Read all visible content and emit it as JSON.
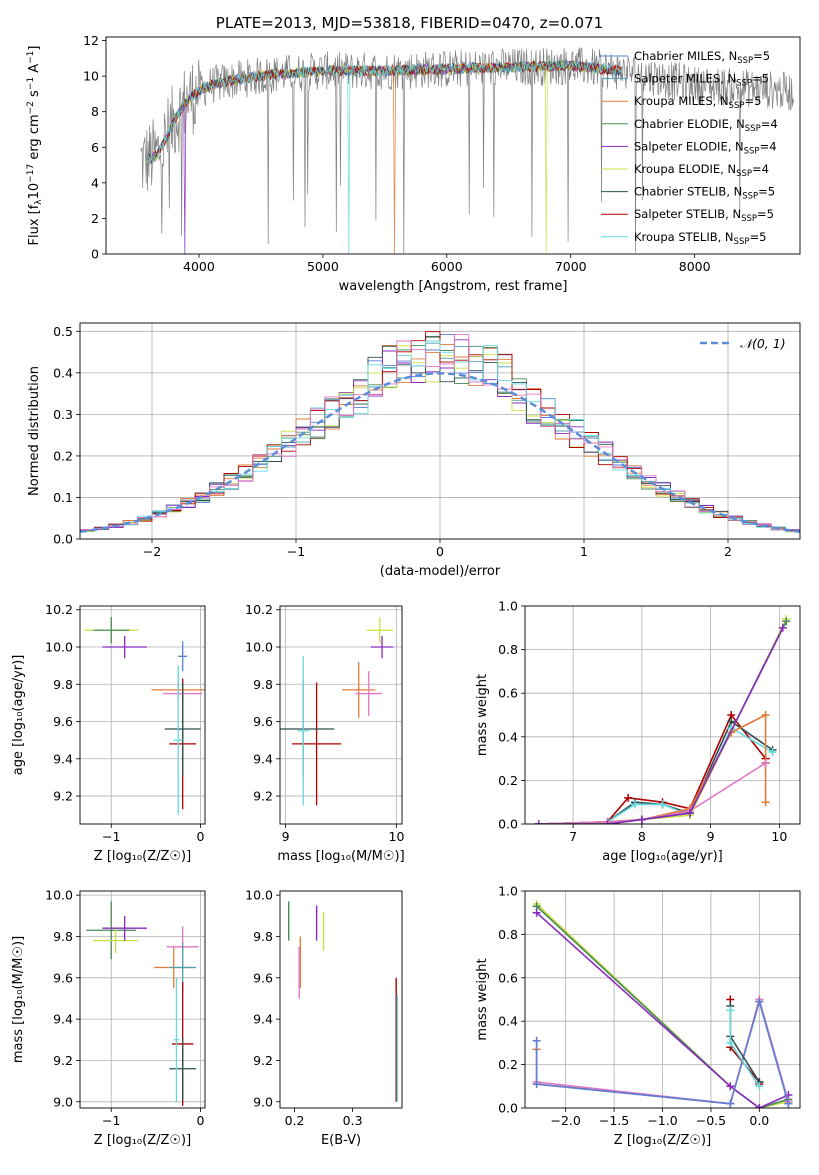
{
  "chart_data": [
    {
      "type": "line",
      "title": "PLATE=2013, MJD=53818, FIBERID=0470, z=0.071",
      "xlabel": "wavelength [Angstrom, rest frame]",
      "ylabel": "Flux [f_λ 10^−17 erg cm^−2 s^−1 A^−1]",
      "xlim": [
        3250,
        8850
      ],
      "ylim": [
        0,
        12.2
      ],
      "xticks": [
        "4000",
        "5000",
        "6000",
        "7000",
        "8000"
      ],
      "yticks": [
        "0",
        "2",
        "4",
        "6",
        "8",
        "10",
        "12"
      ],
      "grid": false,
      "legend_position": "upper-right",
      "series": [
        {
          "name": "Chabrier MILES, N_SSP=5",
          "color": "#5a7fd6"
        },
        {
          "name": "Salpeter MILES, N_SSP=5",
          "color": "#4f9fb0"
        },
        {
          "name": "Kroupa MILES, N_SSP=5",
          "color": "#e07b39"
        },
        {
          "name": "Chabrier ELODIE, N_SSP=4",
          "color": "#4a8a5a"
        },
        {
          "name": "Salpeter ELODIE, N_SSP=4",
          "color": "#8a2bc0"
        },
        {
          "name": "Kroupa ELODIE, N_SSP=4",
          "color": "#c8e040"
        },
        {
          "name": "Chabrier STELIB, N_SSP=5",
          "color": "#2f4f4f"
        },
        {
          "name": "Salpeter STELIB, N_SSP=5",
          "color": "#b00000"
        },
        {
          "name": "Kroupa STELIB, N_SSP=5",
          "color": "#66d9e0"
        }
      ],
      "model_curve": {
        "x": [
          3550,
          3650,
          3700,
          3800,
          3900,
          4000,
          4100,
          4300,
          4600,
          5000,
          5500,
          6000,
          6500,
          7000,
          7500,
          8000,
          8500,
          8800
        ],
        "y": [
          5.2,
          5.5,
          6.0,
          7.5,
          8.6,
          9.2,
          9.5,
          9.8,
          10.1,
          10.3,
          10.3,
          10.4,
          10.5,
          10.6,
          10.2,
          9.5,
          9.3,
          9.1
        ]
      }
    },
    {
      "type": "line",
      "xlabel": "(data-model)/error",
      "ylabel": "Normed distribution",
      "xlim": [
        -2.5,
        2.5
      ],
      "ylim": [
        0,
        0.52
      ],
      "xticks": [
        "−2",
        "−1",
        "0",
        "1",
        "2"
      ],
      "yticks": [
        "0.0",
        "0.1",
        "0.2",
        "0.3",
        "0.4",
        "0.5"
      ],
      "grid": true,
      "legend": {
        "label": "𝒩(0, 1)",
        "position": "upper-right",
        "color": "#5b8dd9"
      },
      "gaussian": {
        "mean": 0,
        "sigma": 1
      }
    },
    {
      "type": "scatter",
      "xlabel": "Z [log₁₀(Z/Z☉)]",
      "ylabel": "age  [log₁₀(age/yr)]",
      "xlim": [
        -1.35,
        0.05
      ],
      "ylim": [
        9.05,
        10.22
      ],
      "xticks": [
        "−1",
        "0"
      ],
      "yticks": [
        "9.2",
        "9.4",
        "9.6",
        "9.8",
        "10.0",
        "10.2"
      ],
      "grid": true,
      "crosses": [
        {
          "x": -1.0,
          "y": 10.09,
          "xerr": 0.3,
          "yerr": 0.07,
          "color": "#c8e040"
        },
        {
          "x": -1.0,
          "y": 10.09,
          "xerr": 0.2,
          "yerr": 0.07,
          "color": "#4a8a5a"
        },
        {
          "x": -0.85,
          "y": 10.0,
          "xerr": 0.25,
          "yerr": 0.06,
          "color": "#8a2bc0"
        },
        {
          "x": -0.25,
          "y": 9.77,
          "xerr": 0.3,
          "yerr": 0.05,
          "color": "#e07b39"
        },
        {
          "x": -0.2,
          "y": 9.75,
          "xerr": 0.22,
          "yerr": 0.05,
          "color": "#e377c2"
        },
        {
          "x": -0.2,
          "y": 9.95,
          "xerr": 0.05,
          "yerr": 0.08,
          "color": "#5a7fd6"
        },
        {
          "x": -0.2,
          "y": 9.48,
          "xerr": 0.15,
          "yerr": 0.35,
          "color": "#b00000"
        },
        {
          "x": -0.2,
          "y": 9.56,
          "xerr": 0.2,
          "yerr": 0.25,
          "color": "#2f4f4f"
        },
        {
          "x": -0.25,
          "y": 9.5,
          "xerr": 0.05,
          "yerr": 0.4,
          "color": "#66d9e0"
        }
      ]
    },
    {
      "type": "scatter",
      "xlabel": "mass [log₁₀(M/M☉)]",
      "ylabel": "",
      "xlim": [
        8.95,
        10.05
      ],
      "ylim": [
        9.05,
        10.22
      ],
      "xticks": [
        "9",
        "10"
      ],
      "yticks": [
        "9.2",
        "9.4",
        "9.6",
        "9.8",
        "10.0",
        "10.2"
      ],
      "grid": true,
      "crosses": [
        {
          "x": 9.85,
          "y": 10.09,
          "xerr": 0.12,
          "yerr": 0.07,
          "color": "#c8e040"
        },
        {
          "x": 9.87,
          "y": 10.0,
          "xerr": 0.1,
          "yerr": 0.06,
          "color": "#8a2bc0"
        },
        {
          "x": 9.66,
          "y": 9.77,
          "xerr": 0.15,
          "yerr": 0.15,
          "color": "#e07b39"
        },
        {
          "x": 9.75,
          "y": 9.75,
          "xerr": 0.12,
          "yerr": 0.12,
          "color": "#e377c2"
        },
        {
          "x": 9.28,
          "y": 9.48,
          "xerr": 0.22,
          "yerr": 0.33,
          "color": "#b00000"
        },
        {
          "x": 9.16,
          "y": 9.56,
          "xerr": 0.28,
          "yerr": 0.26,
          "color": "#2f4f4f"
        },
        {
          "x": 9.16,
          "y": 9.55,
          "xerr": 0.05,
          "yerr": 0.4,
          "color": "#66d9e0"
        }
      ]
    },
    {
      "type": "line",
      "xlabel": "age  [log₁₀(age/yr)]",
      "ylabel": "mass weight",
      "xlim": [
        6.3,
        10.3
      ],
      "ylim": [
        0,
        1.0
      ],
      "xticks": [
        "7",
        "8",
        "9",
        "10"
      ],
      "yticks": [
        "0.0",
        "0.2",
        "0.4",
        "0.6",
        "0.8",
        "1.0"
      ],
      "grid": true,
      "series": [
        {
          "color": "#b00000",
          "x": [
            6.5,
            7.5,
            7.8,
            8.3,
            8.7,
            9.3,
            9.8,
            9.8
          ],
          "y": [
            0.0,
            0.01,
            0.12,
            0.1,
            0.07,
            0.5,
            0.3,
            0.28
          ]
        },
        {
          "color": "#2f4f4f",
          "x": [
            6.5,
            7.5,
            7.9,
            8.3,
            8.7,
            9.3,
            9.9
          ],
          "y": [
            0.0,
            0.01,
            0.1,
            0.09,
            0.05,
            0.47,
            0.34
          ]
        },
        {
          "color": "#66d9e0",
          "x": [
            6.5,
            7.5,
            7.9,
            8.3,
            8.7,
            9.3,
            9.9
          ],
          "y": [
            0.0,
            0.01,
            0.09,
            0.09,
            0.04,
            0.44,
            0.33
          ]
        },
        {
          "color": "#e07b39",
          "x": [
            6.5,
            7.5,
            8.0,
            8.7,
            9.3,
            9.8,
            9.8
          ],
          "y": [
            0.0,
            0.01,
            0.02,
            0.07,
            0.42,
            0.5,
            0.1
          ]
        },
        {
          "color": "#e377c2",
          "x": [
            6.5,
            7.5,
            8.0,
            8.7,
            9.8
          ],
          "y": [
            0.0,
            0.01,
            0.02,
            0.06,
            0.28
          ]
        },
        {
          "color": "#c8e040",
          "x": [
            6.5,
            7.5,
            8.0,
            8.7,
            10.1
          ],
          "y": [
            0.0,
            0.0,
            0.02,
            0.04,
            0.94
          ]
        },
        {
          "color": "#4a8a5a",
          "x": [
            6.5,
            7.5,
            8.0,
            8.7,
            10.1
          ],
          "y": [
            0.0,
            0.0,
            0.02,
            0.05,
            0.93
          ]
        },
        {
          "color": "#8a2bc0",
          "x": [
            6.5,
            7.5,
            8.0,
            8.7,
            10.05
          ],
          "y": [
            0.0,
            0.0,
            0.02,
            0.05,
            0.9
          ]
        }
      ]
    },
    {
      "type": "scatter",
      "xlabel": "Z [log₁₀(Z/Z☉)]",
      "ylabel": "mass [log₁₀(M/M☉)]",
      "xlim": [
        -1.35,
        0.05
      ],
      "ylim": [
        8.97,
        10.02
      ],
      "xticks": [
        "−1",
        "0"
      ],
      "yticks": [
        "9.0",
        "9.2",
        "9.4",
        "9.6",
        "9.8",
        "10.0"
      ],
      "grid": true,
      "crosses": [
        {
          "x": -1.0,
          "y": 9.83,
          "xerr": 0.28,
          "yerr": 0.14,
          "color": "#4a8a5a"
        },
        {
          "x": -0.95,
          "y": 9.78,
          "xerr": 0.25,
          "yerr": 0.06,
          "color": "#c8e040"
        },
        {
          "x": -0.85,
          "y": 9.84,
          "xerr": 0.25,
          "yerr": 0.06,
          "color": "#8a2bc0"
        },
        {
          "x": -0.3,
          "y": 9.65,
          "xerr": 0.22,
          "yerr": 0.1,
          "color": "#e07b39"
        },
        {
          "x": -0.2,
          "y": 9.75,
          "xerr": 0.18,
          "yerr": 0.1,
          "color": "#e377c2"
        },
        {
          "x": -0.2,
          "y": 9.65,
          "xerr": 0.15,
          "yerr": 0.12,
          "color": "#4f9fb0"
        },
        {
          "x": -0.2,
          "y": 9.28,
          "xerr": 0.12,
          "yerr": 0.3,
          "color": "#b00000"
        },
        {
          "x": -0.2,
          "y": 9.16,
          "xerr": 0.15,
          "yerr": 0.15,
          "color": "#2f4f4f"
        },
        {
          "x": -0.27,
          "y": 9.3,
          "xerr": 0.03,
          "yerr": 0.3,
          "color": "#66d9e0"
        }
      ]
    },
    {
      "type": "scatter",
      "xlabel": "E(B-V)",
      "ylabel": "",
      "xlim": [
        0.175,
        0.385
      ],
      "ylim": [
        8.97,
        10.02
      ],
      "xticks": [
        "0.2",
        "0.3"
      ],
      "yticks": [
        "9.0",
        "9.2",
        "9.4",
        "9.6",
        "9.8",
        "10.0"
      ],
      "grid": false,
      "bars": [
        {
          "x": 0.19,
          "y0": 9.78,
          "y1": 9.97,
          "color": "#4a8a5a"
        },
        {
          "x": 0.21,
          "y0": 9.55,
          "y1": 9.8,
          "color": "#e07b39"
        },
        {
          "x": 0.208,
          "y0": 9.5,
          "y1": 9.75,
          "color": "#e377c2"
        },
        {
          "x": 0.238,
          "y0": 9.78,
          "y1": 9.95,
          "color": "#8a2bc0"
        },
        {
          "x": 0.25,
          "y0": 9.73,
          "y1": 9.92,
          "color": "#c8e040"
        },
        {
          "x": 0.375,
          "y0": 9.0,
          "y1": 9.6,
          "color": "#b00000"
        },
        {
          "x": 0.377,
          "y0": 9.0,
          "y1": 9.52,
          "color": "#66d9e0"
        }
      ]
    },
    {
      "type": "line",
      "xlabel": "Z [log₁₀(Z/Z☉)]",
      "ylabel": "mass weight",
      "xlim": [
        -2.42,
        0.42
      ],
      "ylim": [
        0,
        1.0
      ],
      "xticks": [
        "−2.0",
        "−1.5",
        "−1.0",
        "−0.5",
        "0.0"
      ],
      "yticks": [
        "0.0",
        "0.2",
        "0.4",
        "0.6",
        "0.8",
        "1.0"
      ],
      "grid": true,
      "series": [
        {
          "color": "#c8e040",
          "x": [
            -2.3,
            -0.3,
            0.0,
            0.3
          ],
          "y": [
            0.94,
            0.1,
            0.0,
            0.03
          ]
        },
        {
          "color": "#4a8a5a",
          "x": [
            -2.3,
            -0.3,
            0.0,
            0.3
          ],
          "y": [
            0.93,
            0.1,
            0.0,
            0.04
          ]
        },
        {
          "color": "#8a2bc0",
          "x": [
            -2.3,
            -0.3,
            0.0,
            0.3
          ],
          "y": [
            0.9,
            0.1,
            0.0,
            0.06
          ]
        },
        {
          "color": "#e07b39",
          "x": [
            -2.3,
            -2.3,
            -0.3,
            0.0,
            0.3
          ],
          "y": [
            0.27,
            0.11,
            0.02,
            0.5,
            0.02
          ]
        },
        {
          "color": "#e377c2",
          "x": [
            -2.3,
            -0.3,
            0.0,
            0.3
          ],
          "y": [
            0.12,
            0.02,
            0.5,
            0.03
          ]
        },
        {
          "color": "#5a7fd6",
          "x": [
            -2.3,
            -2.3,
            -0.3,
            0.0,
            0.3
          ],
          "y": [
            0.31,
            0.11,
            0.02,
            0.49,
            0.02
          ]
        },
        {
          "color": "#b00000",
          "x": [
            -0.3,
            -0.3,
            0.0,
            0.0
          ],
          "y": [
            0.5,
            0.28,
            0.12,
            0.11
          ]
        },
        {
          "color": "#2f4f4f",
          "x": [
            -0.3,
            -0.3,
            0.0
          ],
          "y": [
            0.47,
            0.33,
            0.12
          ]
        },
        {
          "color": "#66d9e0",
          "x": [
            -0.3,
            -0.3,
            0.0
          ],
          "y": [
            0.45,
            0.3,
            0.1
          ]
        }
      ]
    }
  ]
}
